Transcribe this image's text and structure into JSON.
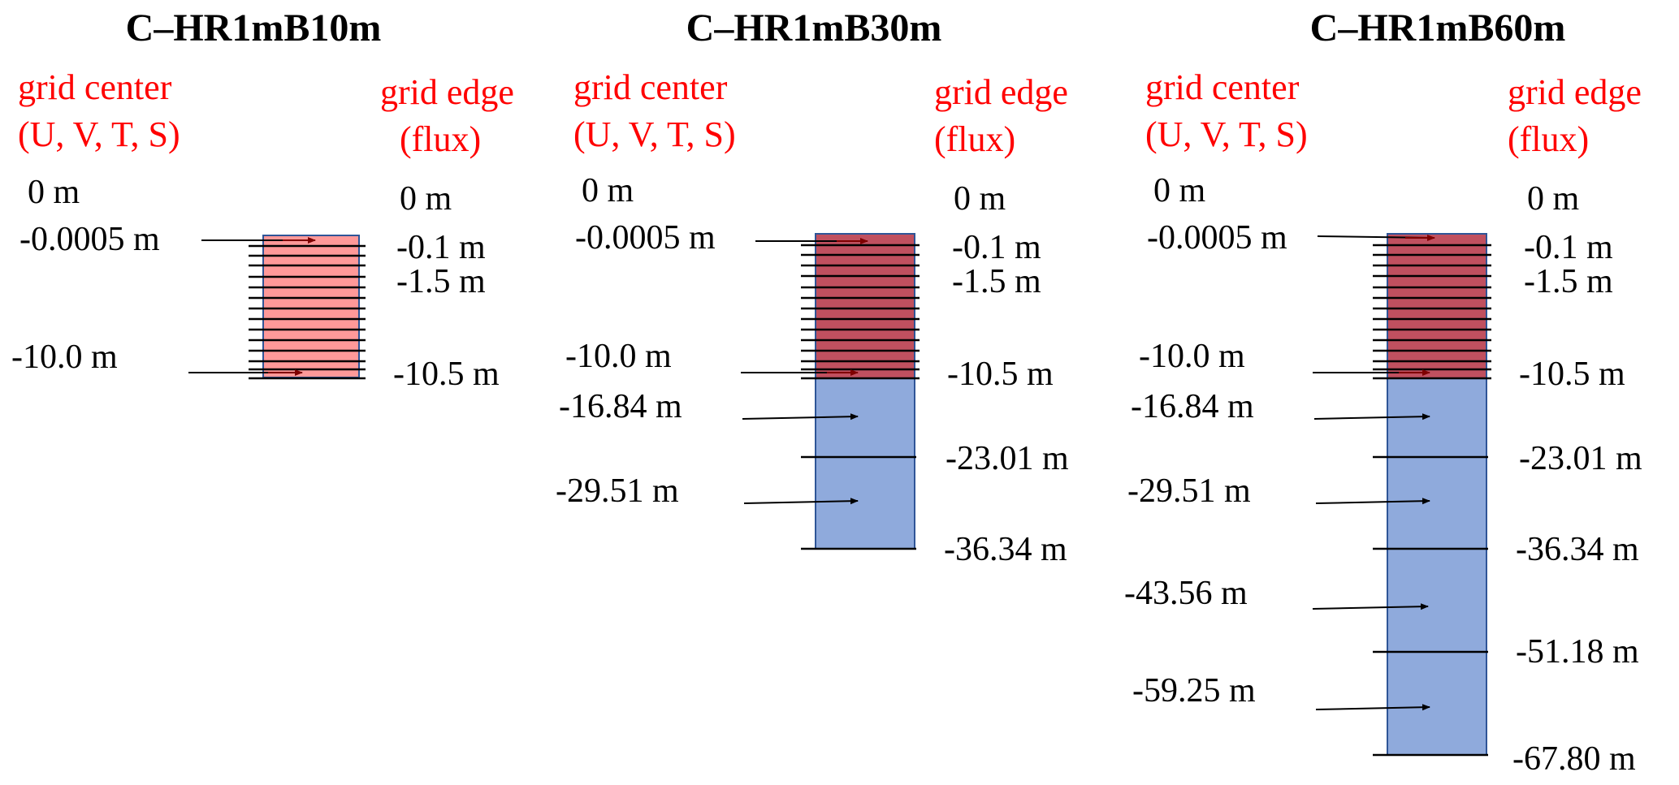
{
  "colors": {
    "label_red": "#ff0000",
    "pink_fill": "#ff9999",
    "dark_red_fill": "#c0505f",
    "blue_fill": "#8faadc",
    "box_border": "#2f5597",
    "arrow_red": "#7f0000",
    "black": "#000000"
  },
  "labels": {
    "center_line1": "grid center",
    "center_line2": "(U, V, T, S)",
    "edge_line1": "grid edge",
    "edge_line2": "(flux)"
  },
  "panels": [
    {
      "title": "C–HR1mB10m",
      "top_label": "0 m",
      "edge_top_label": "0 m",
      "center_labels": [
        {
          "text": "-0.0005 m",
          "arrow": "dark-red"
        },
        {
          "text": "-10.0 m",
          "arrow": "dark-red"
        }
      ],
      "edge_labels": [
        "-0.1 m",
        "-1.5 m",
        "-10.5 m"
      ],
      "upper_region": "pink",
      "lower_edge_labels": [],
      "lower_center_labels": []
    },
    {
      "title": "C–HR1mB30m",
      "top_label": "0 m",
      "edge_top_label": "0 m",
      "center_labels": [
        {
          "text": "-0.0005 m",
          "arrow": "dark-red"
        },
        {
          "text": "-10.0 m",
          "arrow": "dark-red"
        }
      ],
      "edge_labels": [
        "-0.1 m",
        "-1.5 m",
        "-10.5 m"
      ],
      "upper_region": "dark-red",
      "lower_center_labels": [
        "-16.84 m",
        "-29.51 m"
      ],
      "lower_edge_labels": [
        "-23.01 m",
        "-36.34 m"
      ]
    },
    {
      "title": "C–HR1mB60m",
      "top_label": "0 m",
      "edge_top_label": "0 m",
      "center_labels": [
        {
          "text": "-0.0005 m",
          "arrow": "dark-red"
        },
        {
          "text": "-10.0 m",
          "arrow": "dark-red"
        }
      ],
      "edge_labels": [
        "-0.1 m",
        "-1.5 m",
        "-10.5 m"
      ],
      "upper_region": "dark-red",
      "lower_center_labels": [
        "-16.84 m",
        "-29.51 m",
        "-43.56 m",
        "-59.25 m"
      ],
      "lower_edge_labels": [
        "-23.01 m",
        "-36.34 m",
        "-51.18 m",
        "-67.80 m"
      ]
    }
  ]
}
